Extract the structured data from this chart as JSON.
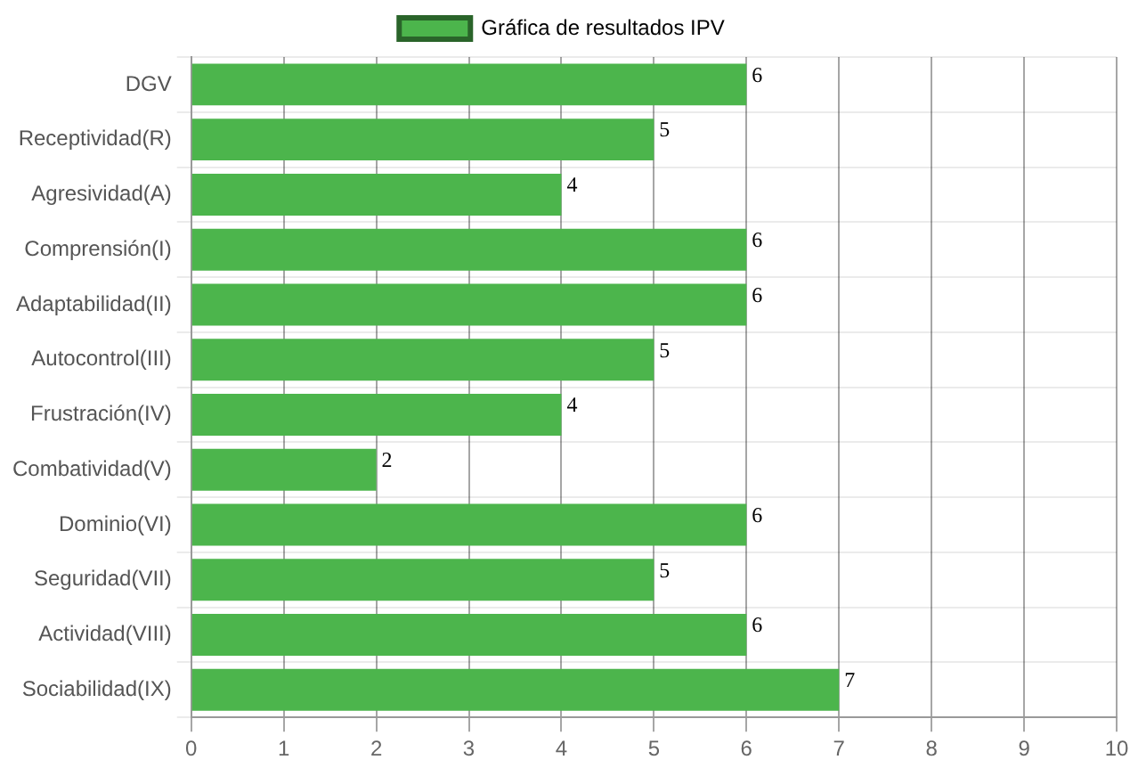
{
  "chart_data": {
    "type": "bar",
    "orientation": "horizontal",
    "categories": [
      "DGV",
      "Receptividad(R)",
      "Agresividad(A)",
      "Comprensión(I)",
      "Adaptabilidad(II)",
      "Autocontrol(III)",
      "Frustración(IV)",
      "Combatividad(V)",
      "Dominio(VI)",
      "Seguridad(VII)",
      "Actividad(VIII)",
      "Sociabilidad(IX)"
    ],
    "series": [
      {
        "name": "Gráfica de resultados IPV",
        "color": "#4cb54c",
        "values": [
          6,
          5,
          4,
          6,
          6,
          5,
          4,
          2,
          6,
          5,
          6,
          7
        ]
      }
    ],
    "xlim": [
      0,
      10
    ],
    "xticks": [
      0,
      1,
      2,
      3,
      4,
      5,
      6,
      7,
      8,
      9,
      10
    ],
    "grid": true,
    "legend": "top",
    "data_labels": true
  }
}
